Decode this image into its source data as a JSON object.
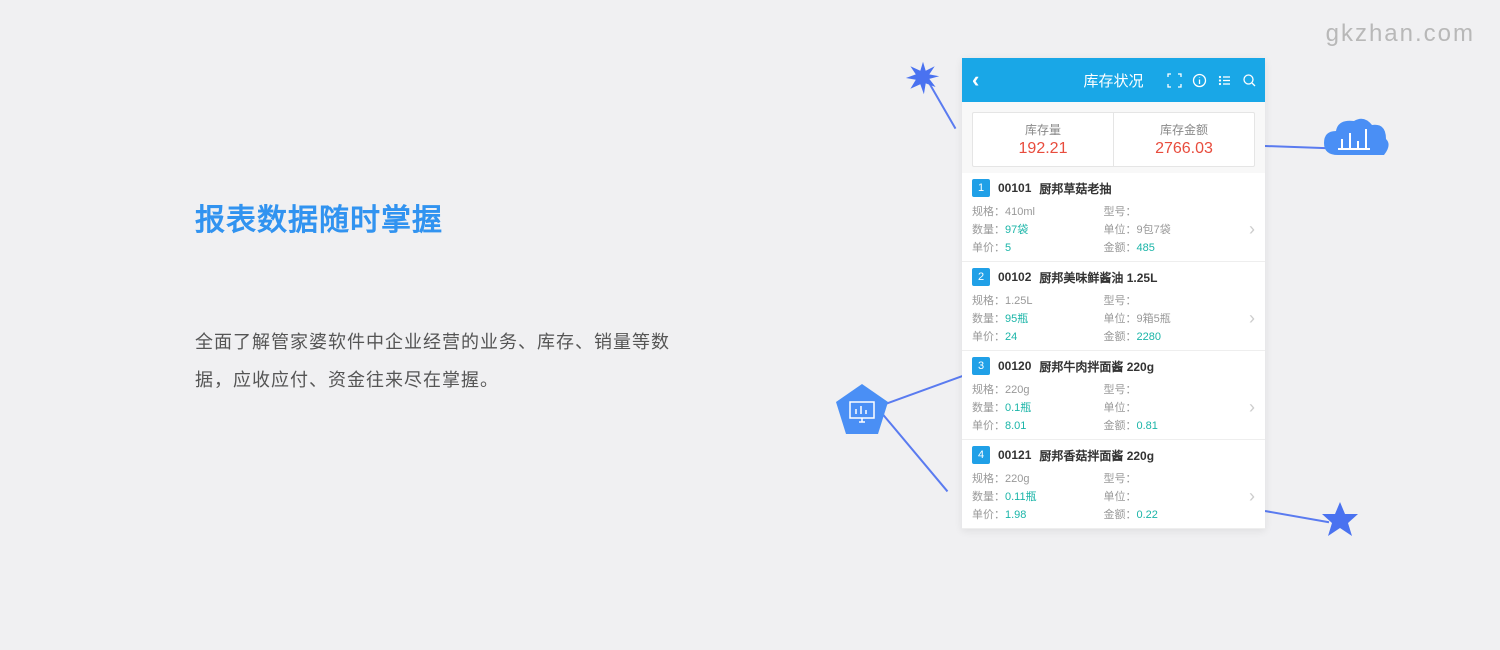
{
  "watermark": "gkzhan.com",
  "title": "报表数据随时掌握",
  "description": "全面了解管家婆软件中企业经营的业务、库存、销量等数据，应收应付、资金往来尽在掌握。",
  "phone": {
    "headerTitle": "库存状况",
    "stat1Label": "库存量",
    "stat1Value": "192.21",
    "stat2Label": "库存金额",
    "stat2Value": "2766.03",
    "labels": {
      "spec": "规格：",
      "model": "型号：",
      "qty": "数量：",
      "unit": "单位：",
      "price": "单价：",
      "amount": "金额："
    },
    "items": [
      {
        "num": "1",
        "code": "00101",
        "name": "厨邦草菇老抽",
        "spec": "410ml",
        "model": "",
        "qty": "97袋",
        "unit": "9包7袋",
        "price": "5",
        "amount": "485"
      },
      {
        "num": "2",
        "code": "00102",
        "name": "厨邦美味鲜酱油 1.25L",
        "spec": "1.25L",
        "model": "",
        "qty": "95瓶",
        "unit": "9箱5瓶",
        "price": "24",
        "amount": "2280"
      },
      {
        "num": "3",
        "code": "00120",
        "name": "厨邦牛肉拌面酱 220g",
        "spec": "220g",
        "model": "",
        "qty": "0.1瓶",
        "unit": "",
        "price": "8.01",
        "amount": "0.81"
      },
      {
        "num": "4",
        "code": "00121",
        "name": "厨邦香菇拌面酱 220g",
        "spec": "220g",
        "model": "",
        "qty": "0.11瓶",
        "unit": "",
        "price": "1.98",
        "amount": "0.22"
      }
    ]
  },
  "colors": {
    "accent": "#3193f0",
    "headerBlue": "#19a7e7",
    "statRed": "#e84c3d",
    "valTeal": "#1bb5a8",
    "decoBlue": "#4a72f0"
  }
}
